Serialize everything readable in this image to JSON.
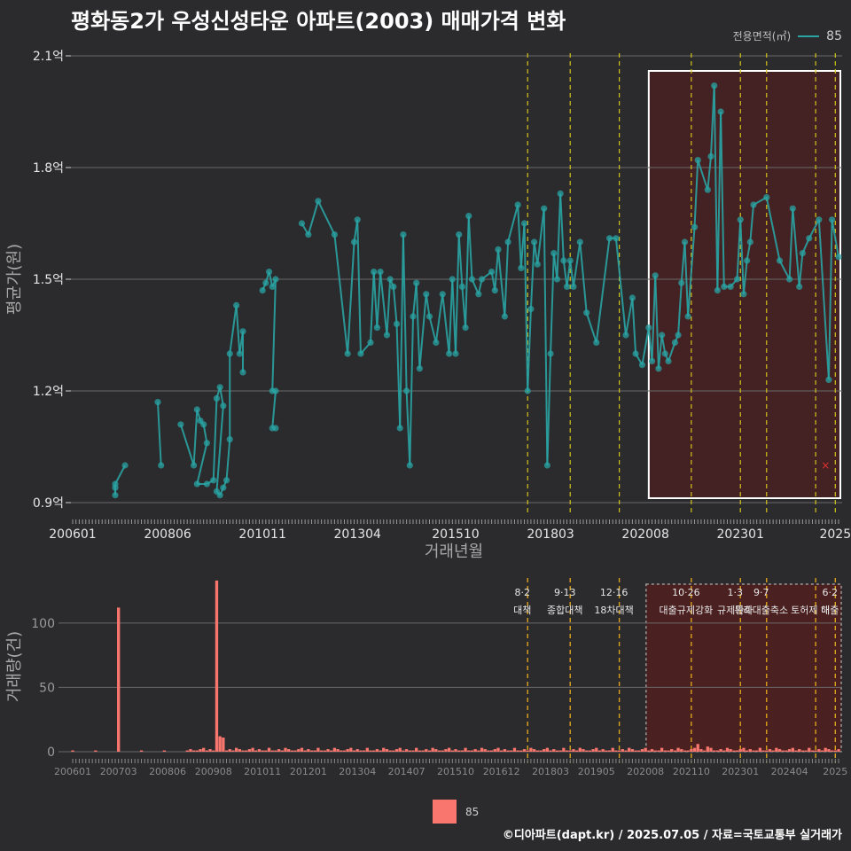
{
  "title": "평화동2가 우성신성타운 아파트(2003) 매매가격 변화",
  "footer": "©디아파트(dapt.kr) / 2025.07.05 / 자료=국토교통부 실거래가",
  "colors": {
    "background": "#2b2b2d",
    "price_series": "#2aa3a3",
    "volume_bars": "#f8766d",
    "policy_line": "#d4c21a",
    "highlight_fill": "#5a1c1c",
    "highlight_border": "#ffffff"
  },
  "chart_data": [
    {
      "type": "line",
      "name": "price",
      "legend_title": "전용면적(㎡)",
      "xlabel": "거래년월",
      "ylabel": "평균가(원)",
      "xlim": [
        "2006-01",
        "2025-07"
      ],
      "ylim": [
        0.9,
        2.1
      ],
      "yticks": [
        0.9,
        1.2,
        1.5,
        1.8,
        2.1
      ],
      "ytick_labels": [
        "0.9억",
        "1.2억",
        "1.5억",
        "1.8억",
        "2.1억"
      ],
      "xtick_labels": [
        "200601",
        "200806",
        "201011",
        "201304",
        "201510",
        "201803",
        "202008",
        "202301",
        "2025"
      ],
      "grid": true,
      "legend_position": "top-right",
      "series": [
        {
          "name": "85",
          "points": [
            [
              "2007-02",
              0.94
            ],
            [
              "2007-02",
              0.92
            ],
            [
              "2007-02",
              0.95
            ],
            [
              "2007-05",
              1.0
            ],
            [
              "2008-03",
              1.17
            ],
            [
              "2008-04",
              1.0
            ],
            [
              "2008-10",
              1.11
            ],
            [
              "2009-02",
              1.0
            ],
            [
              "2009-03",
              1.15
            ],
            [
              "2009-04",
              1.12
            ],
            [
              "2009-05",
              1.11
            ],
            [
              "2009-06",
              1.06
            ],
            [
              "2009-03",
              0.95
            ],
            [
              "2009-06",
              0.95
            ],
            [
              "2009-08",
              0.96
            ],
            [
              "2009-09",
              1.18
            ],
            [
              "2009-10",
              1.21
            ],
            [
              "2009-11",
              1.16
            ],
            [
              "2009-09",
              0.93
            ],
            [
              "2009-10",
              0.92
            ],
            [
              "2009-11",
              0.94
            ],
            [
              "2009-12",
              0.96
            ],
            [
              "2010-01",
              1.07
            ],
            [
              "2010-01",
              1.3
            ],
            [
              "2010-03",
              1.43
            ],
            [
              "2010-04",
              1.3
            ],
            [
              "2010-05",
              1.36
            ],
            [
              "2010-05",
              1.25
            ],
            [
              "2010-11",
              1.47
            ],
            [
              "2010-12",
              1.49
            ],
            [
              "2011-01",
              1.52
            ],
            [
              "2011-02",
              1.48
            ],
            [
              "2011-03",
              1.5
            ],
            [
              "2011-02",
              1.2
            ],
            [
              "2011-03",
              1.2
            ],
            [
              "2011-02",
              1.1
            ],
            [
              "2011-03",
              1.1
            ],
            [
              "2011-11",
              1.65
            ],
            [
              "2012-01",
              1.62
            ],
            [
              "2012-04",
              1.71
            ],
            [
              "2012-09",
              1.62
            ],
            [
              "2013-01",
              1.3
            ],
            [
              "2013-03",
              1.6
            ],
            [
              "2013-04",
              1.66
            ],
            [
              "2013-05",
              1.3
            ],
            [
              "2013-08",
              1.33
            ],
            [
              "2013-09",
              1.52
            ],
            [
              "2013-10",
              1.37
            ],
            [
              "2013-11",
              1.52
            ],
            [
              "2014-01",
              1.35
            ],
            [
              "2014-02",
              1.5
            ],
            [
              "2014-03",
              1.48
            ],
            [
              "2014-04",
              1.38
            ],
            [
              "2014-05",
              1.1
            ],
            [
              "2014-06",
              1.62
            ],
            [
              "2014-07",
              1.2
            ],
            [
              "2014-08",
              1.0
            ],
            [
              "2014-09",
              1.4
            ],
            [
              "2014-10",
              1.49
            ],
            [
              "2014-11",
              1.26
            ],
            [
              "2015-01",
              1.46
            ],
            [
              "2015-02",
              1.4
            ],
            [
              "2015-04",
              1.33
            ],
            [
              "2015-06",
              1.46
            ],
            [
              "2015-08",
              1.3
            ],
            [
              "2015-09",
              1.5
            ],
            [
              "2015-10",
              1.3
            ],
            [
              "2015-11",
              1.62
            ],
            [
              "2015-12",
              1.48
            ],
            [
              "2016-01",
              1.37
            ],
            [
              "2016-02",
              1.67
            ],
            [
              "2016-03",
              1.5
            ],
            [
              "2016-05",
              1.46
            ],
            [
              "2016-06",
              1.5
            ],
            [
              "2016-09",
              1.52
            ],
            [
              "2016-10",
              1.47
            ],
            [
              "2016-11",
              1.58
            ],
            [
              "2017-01",
              1.4
            ],
            [
              "2017-02",
              1.6
            ],
            [
              "2017-05",
              1.7
            ],
            [
              "2017-06",
              1.53
            ],
            [
              "2017-07",
              1.65
            ],
            [
              "2017-08",
              1.2
            ],
            [
              "2017-09",
              1.42
            ],
            [
              "2017-10",
              1.6
            ],
            [
              "2017-11",
              1.54
            ],
            [
              "2018-01",
              1.69
            ],
            [
              "2018-02",
              1.0
            ],
            [
              "2018-03",
              1.3
            ],
            [
              "2018-04",
              1.57
            ],
            [
              "2018-05",
              1.5
            ],
            [
              "2018-06",
              1.73
            ],
            [
              "2018-07",
              1.55
            ],
            [
              "2018-08",
              1.48
            ],
            [
              "2018-09",
              1.55
            ],
            [
              "2018-10",
              1.48
            ],
            [
              "2018-12",
              1.6
            ],
            [
              "2019-02",
              1.41
            ],
            [
              "2019-05",
              1.33
            ],
            [
              "2019-09",
              1.61
            ],
            [
              "2019-11",
              1.61
            ],
            [
              "2020-02",
              1.35
            ],
            [
              "2020-04",
              1.45
            ],
            [
              "2020-05",
              1.3
            ],
            [
              "2020-07",
              1.27
            ],
            [
              "2020-09",
              1.37
            ],
            [
              "2020-10",
              1.28
            ],
            [
              "2020-11",
              1.51
            ],
            [
              "2020-12",
              1.26
            ],
            [
              "2021-01",
              1.35
            ],
            [
              "2021-02",
              1.3
            ],
            [
              "2021-03",
              1.28
            ],
            [
              "2021-05",
              1.33
            ],
            [
              "2021-06",
              1.35
            ],
            [
              "2021-07",
              1.49
            ],
            [
              "2021-08",
              1.6
            ],
            [
              "2021-09",
              1.4
            ],
            [
              "2021-11",
              1.64
            ],
            [
              "2021-12",
              1.82
            ],
            [
              "2022-03",
              1.74
            ],
            [
              "2022-04",
              1.83
            ],
            [
              "2022-05",
              2.02
            ],
            [
              "2022-06",
              1.47
            ],
            [
              "2022-07",
              1.95
            ],
            [
              "2022-08",
              1.48
            ],
            [
              "2022-10",
              1.48
            ],
            [
              "2022-12",
              1.5
            ],
            [
              "2023-01",
              1.66
            ],
            [
              "2023-02",
              1.46
            ],
            [
              "2023-03",
              1.55
            ],
            [
              "2023-04",
              1.6
            ],
            [
              "2023-05",
              1.7
            ],
            [
              "2023-09",
              1.72
            ],
            [
              "2024-01",
              1.55
            ],
            [
              "2024-04",
              1.5
            ],
            [
              "2024-05",
              1.69
            ],
            [
              "2024-07",
              1.48
            ],
            [
              "2024-08",
              1.57
            ],
            [
              "2024-10",
              1.61
            ],
            [
              "2025-01",
              1.66
            ],
            [
              "2025-04",
              1.23
            ],
            [
              "2025-05",
              1.66
            ],
            [
              "2025-07",
              1.56
            ]
          ]
        }
      ],
      "marker_x": [
        "2025-03",
        1.0
      ]
    },
    {
      "type": "bar",
      "name": "volume",
      "ylabel": "거래량(건)",
      "ylim": [
        0,
        130
      ],
      "yticks": [
        0,
        50,
        100
      ],
      "xtick_labels": [
        "200601",
        "200703",
        "200806",
        "200908",
        "201011",
        "201201",
        "201304",
        "201407",
        "201510",
        "201612",
        "201803",
        "201905",
        "202008",
        "202110",
        "202301",
        "202404",
        "2025"
      ],
      "legend": [
        "85"
      ],
      "spikes": [
        [
          "2007-03",
          112
        ],
        [
          "2009-09",
          133
        ],
        [
          "2009-10",
          12
        ],
        [
          "2009-11",
          11
        ],
        [
          "2021-12",
          6
        ],
        [
          "2022-03",
          4
        ]
      ],
      "annotations": [
        {
          "date": "2017-08",
          "label1": "8·2",
          "label2": "대책"
        },
        {
          "date": "2018-09",
          "label1": "9·13",
          "label2": "종합대책"
        },
        {
          "date": "2019-12",
          "label1": "12·16",
          "label2": "18차대책"
        },
        {
          "date": "2021-10",
          "label1": "10·26",
          "label2": "대출규제강화"
        },
        {
          "date": "2023-01",
          "label1": "1·3",
          "label2": "규제완화"
        },
        {
          "date": "2023-09",
          "label1": "9·7",
          "label2": "특례대출축소"
        },
        {
          "date": "2025-06",
          "label1": "6·2",
          "label2": "대출"
        },
        {
          "date": "2024-12",
          "label1": "",
          "label2": "토허제 해"
        }
      ]
    }
  ]
}
